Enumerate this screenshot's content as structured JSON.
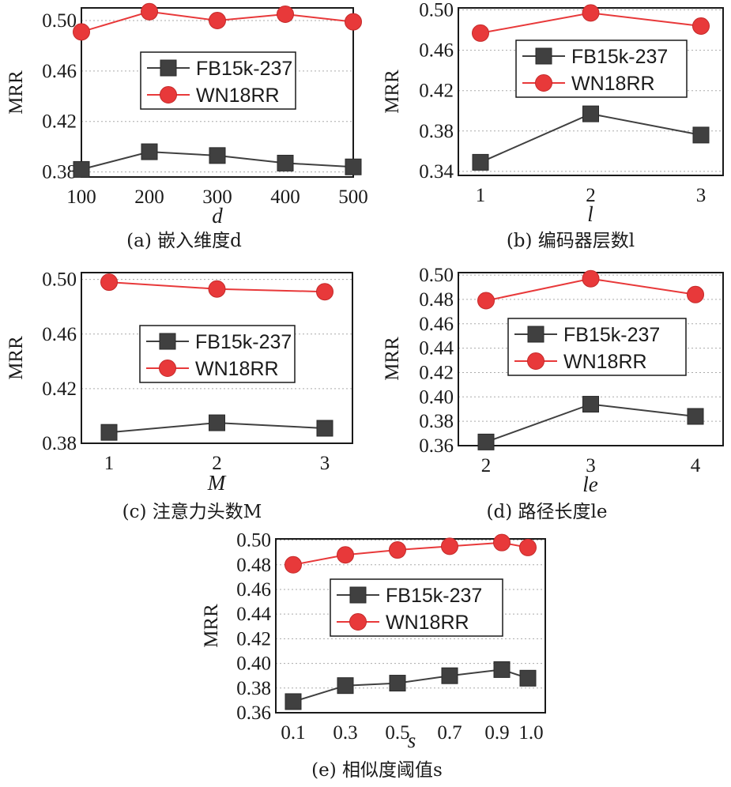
{
  "colors": {
    "fb": "#404040",
    "wn": "#e8393a",
    "grid": "#aaaaaa",
    "frame": "#1a1a1a"
  },
  "chart_data": [
    {
      "id": "a",
      "type": "line",
      "caption": "(a) 嵌入维度d",
      "xlabel": "d",
      "ylabel": "MRR",
      "x": [
        "100",
        "200",
        "300",
        "400",
        "500"
      ],
      "xticks": [
        "100",
        "200",
        "300",
        "400",
        "500"
      ],
      "yticks": [
        "0.38",
        "0.42",
        "0.46",
        "0.50"
      ],
      "ylim": [
        0.376,
        0.51
      ],
      "grid": "horizontal dashed",
      "legend_position": "center",
      "series": [
        {
          "name": "FB15k-237",
          "marker": "square",
          "values": [
            0.382,
            0.396,
            0.393,
            0.387,
            0.384
          ]
        },
        {
          "name": "WN18RR",
          "marker": "circle",
          "values": [
            0.491,
            0.507,
            0.5,
            0.505,
            0.499
          ]
        }
      ]
    },
    {
      "id": "b",
      "type": "line",
      "caption": "(b) 编码器层数l",
      "xlabel": "l",
      "ylabel": "MRR",
      "x": [
        "1",
        "2",
        "3"
      ],
      "xticks": [
        "1",
        "2",
        "3"
      ],
      "yticks": [
        "0.34",
        "0.38",
        "0.42",
        "0.46",
        "0.50"
      ],
      "ylim": [
        0.336,
        0.502
      ],
      "grid": "horizontal dashed",
      "legend_position": "center",
      "series": [
        {
          "name": "FB15k-237",
          "marker": "square",
          "values": [
            0.349,
            0.397,
            0.376
          ]
        },
        {
          "name": "WN18RR",
          "marker": "circle",
          "values": [
            0.477,
            0.497,
            0.484
          ]
        }
      ]
    },
    {
      "id": "c",
      "type": "line",
      "caption": "(c) 注意力头数M",
      "xlabel": "M",
      "ylabel": "MRR",
      "x": [
        "1",
        "2",
        "3"
      ],
      "xticks": [
        "1",
        "2",
        "3"
      ],
      "yticks": [
        "0.38",
        "0.42",
        "0.46",
        "0.50"
      ],
      "ylim": [
        0.38,
        0.505
      ],
      "grid": "horizontal dashed",
      "legend_position": "center",
      "series": [
        {
          "name": "FB15k-237",
          "marker": "square",
          "values": [
            0.388,
            0.395,
            0.391
          ]
        },
        {
          "name": "WN18RR",
          "marker": "circle",
          "values": [
            0.498,
            0.493,
            0.491
          ]
        }
      ]
    },
    {
      "id": "d",
      "type": "line",
      "caption": "(d) 路径长度le",
      "xlabel": "le",
      "ylabel": "MRR",
      "x": [
        "2",
        "3",
        "4"
      ],
      "xticks": [
        "2",
        "3",
        "4"
      ],
      "yticks": [
        "0.36",
        "0.38",
        "0.40",
        "0.42",
        "0.44",
        "0.46",
        "0.48",
        "0.50"
      ],
      "ylim": [
        0.36,
        0.502
      ],
      "grid": "horizontal dashed",
      "legend_position": "center",
      "series": [
        {
          "name": "FB15k-237",
          "marker": "square",
          "values": [
            0.363,
            0.394,
            0.384
          ]
        },
        {
          "name": "WN18RR",
          "marker": "circle",
          "values": [
            0.479,
            0.497,
            0.484
          ]
        }
      ]
    },
    {
      "id": "e",
      "type": "line",
      "caption": "(e) 相似度阈值s",
      "xlabel": "s",
      "ylabel": "MRR",
      "x": [
        0.1,
        0.3,
        0.5,
        0.7,
        0.9,
        1.0
      ],
      "xticks": [
        "0.1",
        "0.3",
        "0.5",
        "0.7",
        "0.9",
        "1.0"
      ],
      "yticks": [
        "0.36",
        "0.38",
        "0.40",
        "0.42",
        "0.44",
        "0.46",
        "0.48",
        "0.50"
      ],
      "ylim": [
        0.36,
        0.501
      ],
      "grid": "horizontal dashed",
      "legend_position": "center",
      "series": [
        {
          "name": "FB15k-237",
          "marker": "square",
          "values": [
            0.369,
            0.382,
            0.384,
            0.39,
            0.395,
            0.388
          ]
        },
        {
          "name": "WN18RR",
          "marker": "circle",
          "values": [
            0.48,
            0.488,
            0.492,
            0.495,
            0.498,
            0.494
          ]
        }
      ]
    }
  ]
}
